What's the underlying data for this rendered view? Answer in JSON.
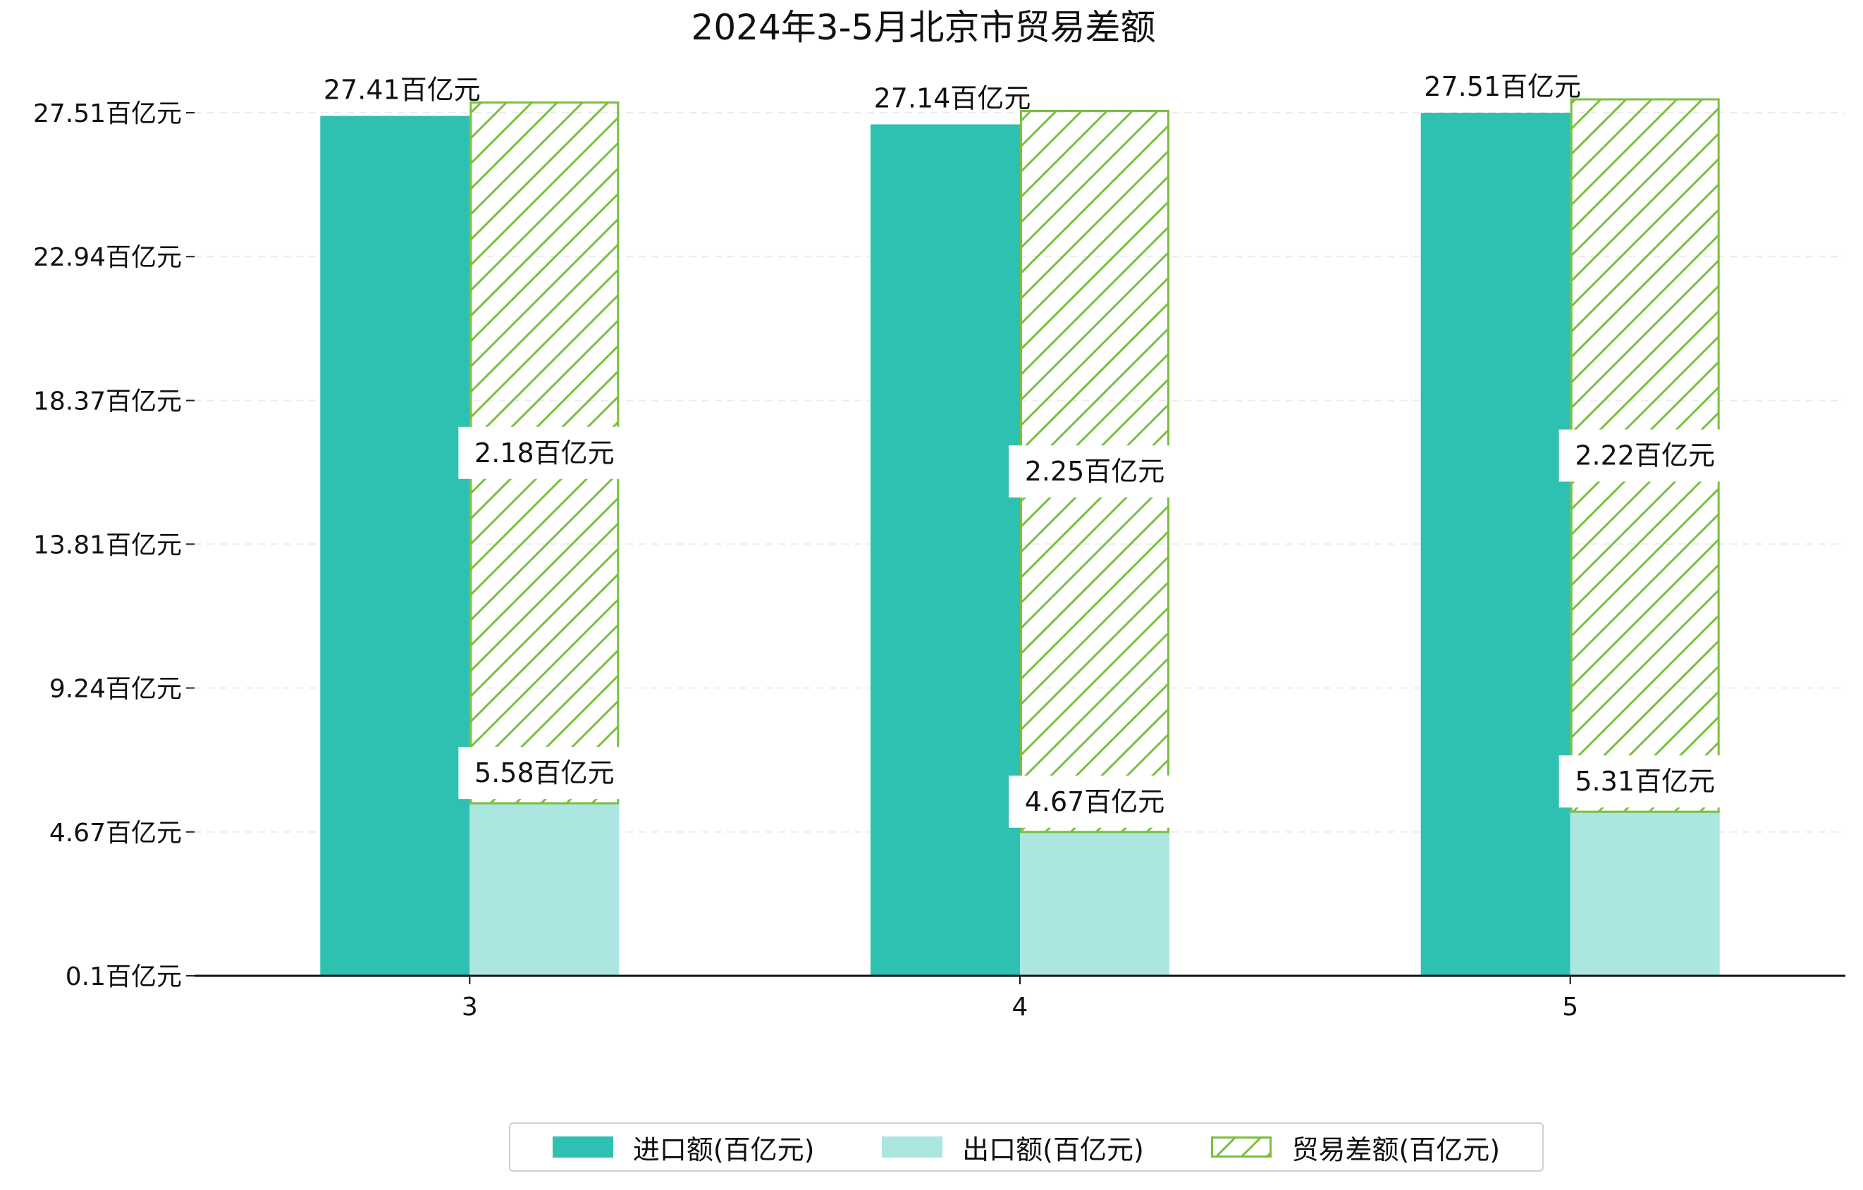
{
  "chart_data": {
    "type": "bar",
    "title": "2024年3-5月北京市贸易差额",
    "categories": [
      "3",
      "4",
      "5"
    ],
    "series": [
      {
        "name": "进口额(百亿元)",
        "values": [
          27.41,
          27.14,
          27.51
        ],
        "color": "#2ec0b1",
        "style": "solid"
      },
      {
        "name": "出口额(百亿元)",
        "values": [
          5.58,
          4.67,
          5.31
        ],
        "color": "#abe6e1",
        "style": "solid"
      },
      {
        "name": "贸易差额(百亿元)",
        "values": [
          2.18,
          2.25,
          2.22
        ],
        "color": "#7bbf3f",
        "style": "hatch",
        "stacked_on": "出口额(百亿元)"
      }
    ],
    "data_labels": {
      "import": [
        "27.41百亿元",
        "27.14百亿元",
        "27.51百亿元"
      ],
      "export": [
        "5.58百亿元",
        "4.67百亿元",
        "5.31百亿元"
      ],
      "balance": [
        "2.18百亿元",
        "2.25百亿元",
        "2.22百亿元"
      ]
    },
    "y_ticks": [
      0.1,
      4.67,
      9.24,
      13.81,
      18.37,
      22.94,
      27.51
    ],
    "y_tick_labels": [
      "0.1百亿元",
      "4.67百亿元",
      "9.24百亿元",
      "13.81百亿元",
      "18.37百亿元",
      "22.94百亿元",
      "27.51百亿元"
    ],
    "ylim": [
      0.1,
      27.51
    ],
    "xlabel": "",
    "ylabel": "",
    "grid": "horizontal dashed",
    "legend_position": "bottom-center"
  },
  "legend": {
    "import_label": "进口额(百亿元)",
    "export_label": "出口额(百亿元)",
    "balance_label": "贸易差额(百亿元)"
  }
}
